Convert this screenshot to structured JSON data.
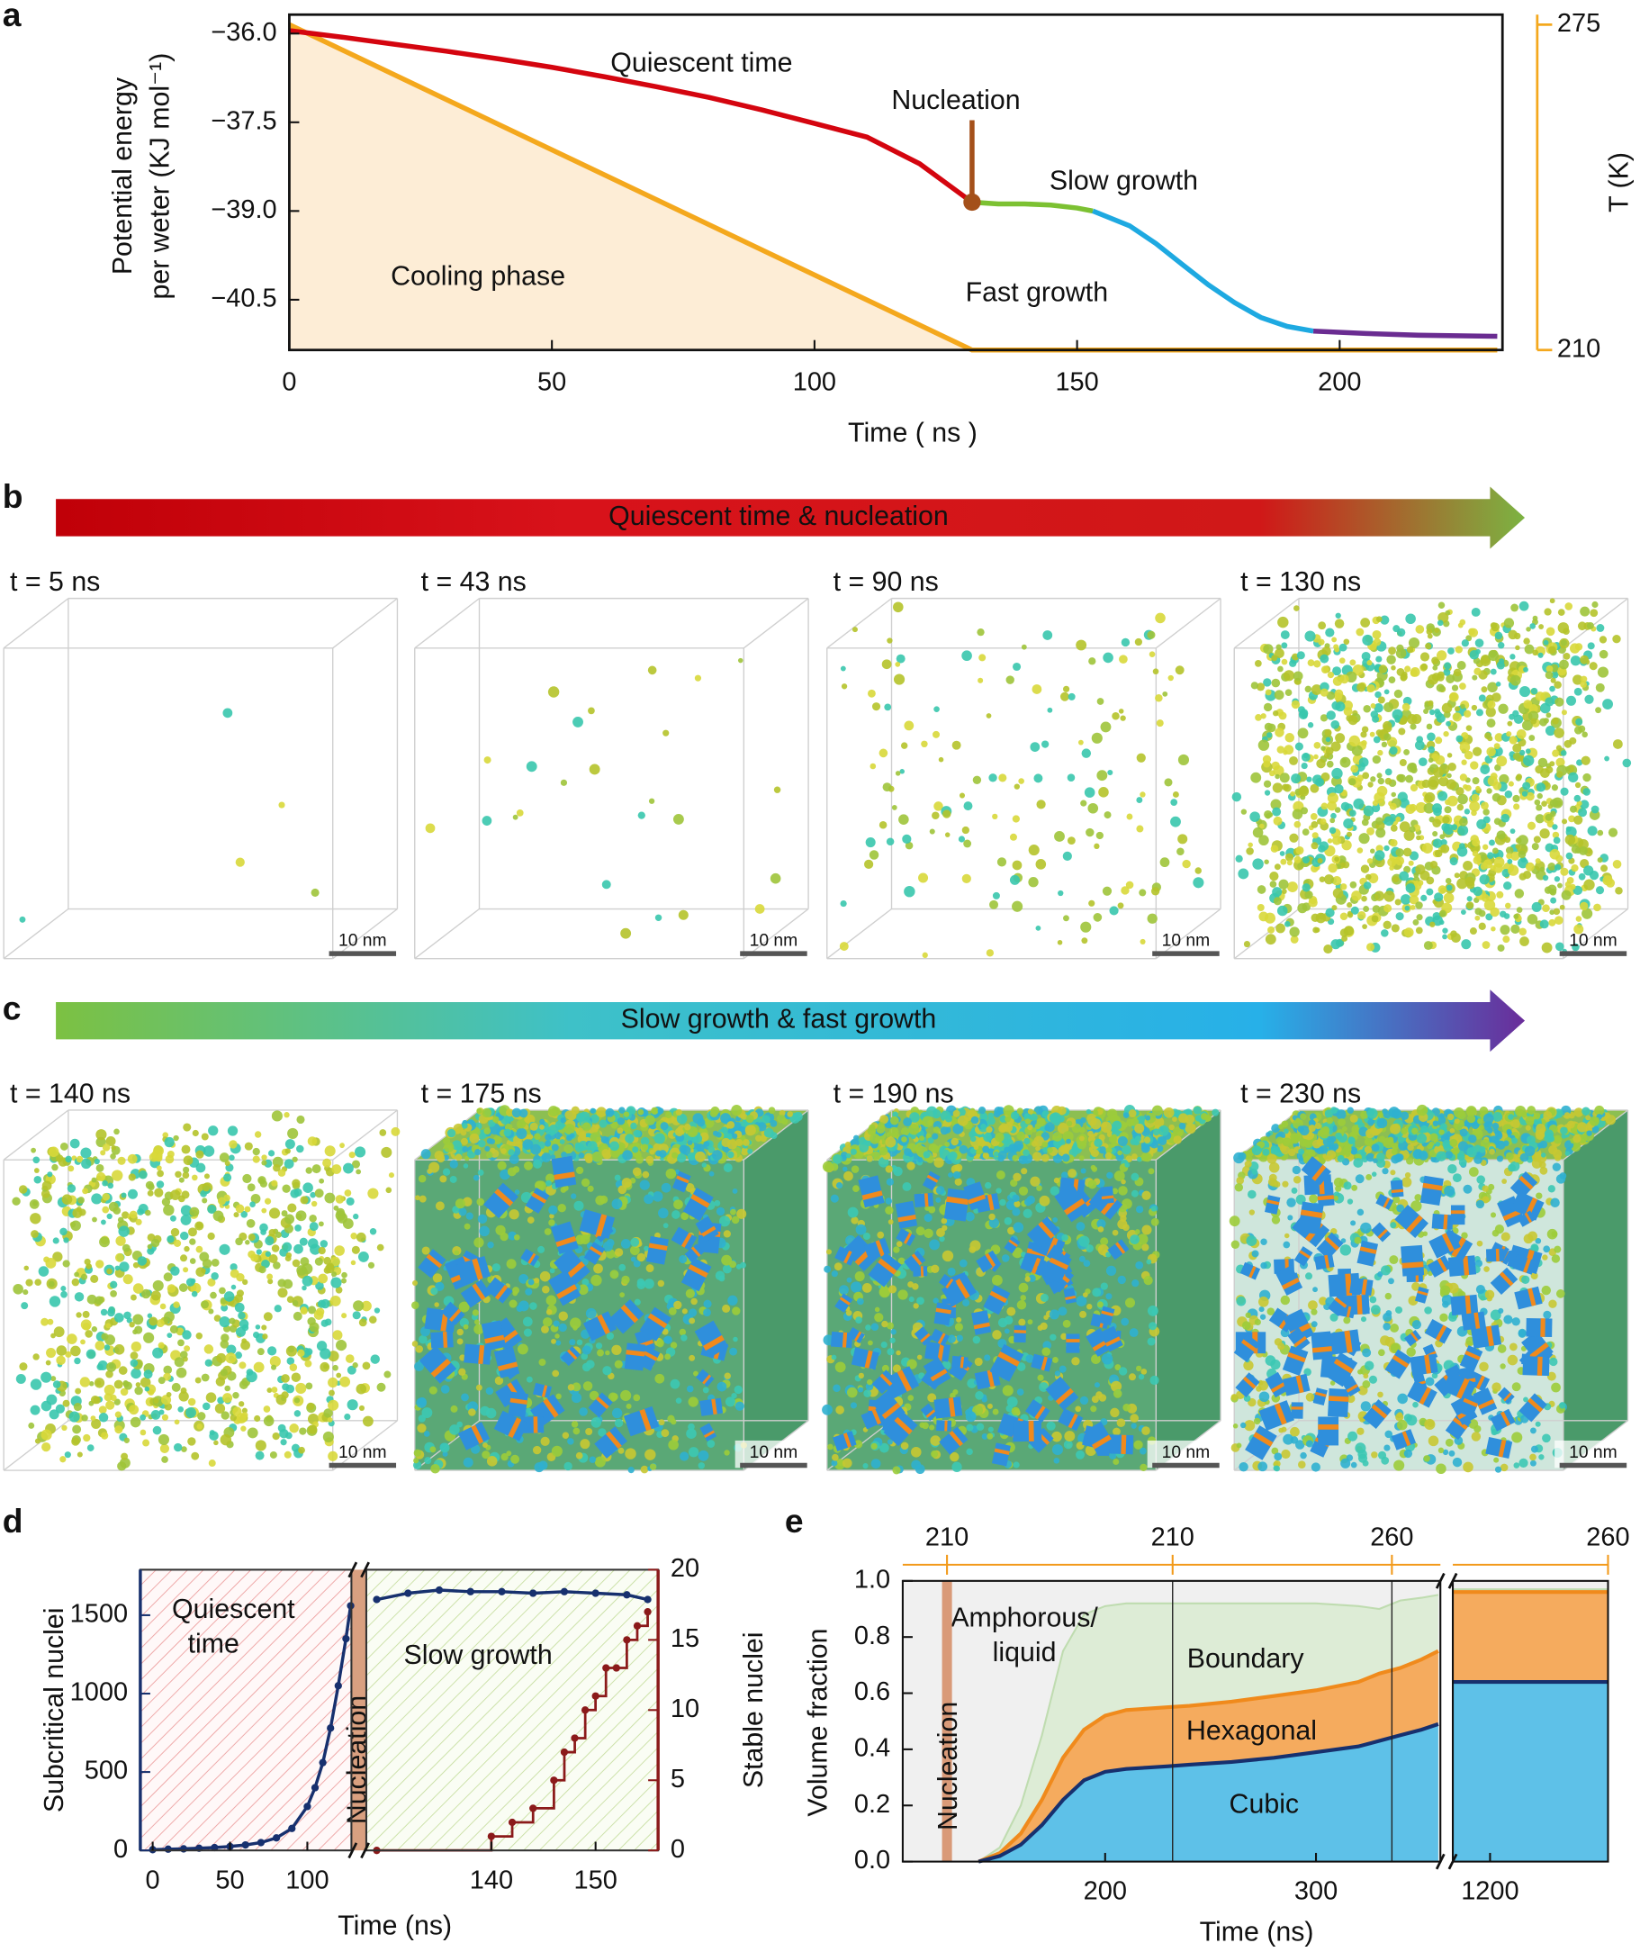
{
  "chart_data": [
    {
      "type": "line",
      "label": "a",
      "xlabel": "Time ( ns )",
      "ylabel": [
        "Potential energy",
        "per weter (KJ mol⁻¹)"
      ],
      "y2label": "T (K)",
      "xlim": [
        0,
        231
      ],
      "xticks": [
        0,
        50,
        100,
        150,
        200
      ],
      "ylim": [
        -41.35,
        -35.68
      ],
      "yticks": [
        {
          "value": -36,
          "label": "−36.0"
        },
        {
          "value": -37.5,
          "label": "−37.5"
        },
        {
          "value": -39,
          "label": "−39.0"
        },
        {
          "value": -40.5,
          "label": "−40.5"
        }
      ],
      "y2lim": [
        210,
        277
      ],
      "y2ticks": [
        210,
        275
      ],
      "y2color": "#f4a81d",
      "series": [
        {
          "name": "Cooling phase",
          "color": "#f4a81d",
          "axis": "y2",
          "fill": "#fdedd6",
          "x": [
            0,
            130,
            230
          ],
          "values": [
            275,
            210,
            210
          ]
        },
        {
          "name": "Quiescent time",
          "color": "#d4050f",
          "x": [
            0,
            10,
            20,
            30,
            40,
            50,
            60,
            70,
            80,
            90,
            100,
            110,
            120,
            130
          ],
          "values": [
            -35.95,
            -36.06,
            -36.18,
            -36.3,
            -36.43,
            -36.57,
            -36.73,
            -36.9,
            -37.08,
            -37.29,
            -37.52,
            -37.75,
            -38.2,
            -38.85
          ]
        },
        {
          "name": "Slow growth",
          "color": "#7cc132",
          "x": [
            130,
            135,
            140,
            145,
            150,
            153
          ],
          "values": [
            -38.85,
            -38.88,
            -38.88,
            -38.9,
            -38.95,
            -39.0
          ]
        },
        {
          "name": "Fast growth",
          "color": "#1ea9e1",
          "x": [
            153,
            160,
            165,
            170,
            175,
            180,
            185,
            190,
            195
          ],
          "values": [
            -39.0,
            -39.25,
            -39.55,
            -39.9,
            -40.25,
            -40.55,
            -40.8,
            -40.95,
            -41.03
          ]
        },
        {
          "color": "#6a2c91",
          "x": [
            195,
            205,
            215,
            230
          ],
          "values": [
            -41.03,
            -41.07,
            -41.1,
            -41.12
          ]
        }
      ],
      "annotations": [
        {
          "text": "Nucleation",
          "x": 130,
          "y": -38.85,
          "color": "#a4501a"
        }
      ]
    },
    {
      "type": "broken-line",
      "label": "d",
      "xlabel": "Time (ns)",
      "ylabel": "Subcritical nuclei",
      "y2label": "Stable nuclei",
      "xlims": [
        [
          -8,
          128.5
        ],
        [
          128,
          156
        ]
      ],
      "xticks": [
        [
          0,
          50,
          100
        ],
        [
          140,
          150
        ]
      ],
      "ylim": [
        0,
        1790
      ],
      "yticks": [
        0,
        500,
        1000,
        1500
      ],
      "y2lim": [
        0,
        20
      ],
      "y2ticks": [
        0,
        5,
        10,
        15,
        20
      ],
      "ycolor": "#17306e",
      "y2color": "#8b1a1a",
      "regions": [
        {
          "text": [
            "Quiescent",
            "time"
          ],
          "color": "#e0302a"
        },
        {
          "text": [
            "Slow growth"
          ],
          "color": "#8cc63f"
        }
      ],
      "nucleation": {
        "text": "Nucleation",
        "color": "#b5561b"
      },
      "series": [
        {
          "color": "#17306e",
          "x": [
            0,
            10,
            20,
            30,
            40,
            50,
            60,
            70,
            80,
            90,
            100,
            105,
            110,
            115,
            120,
            125,
            128,
            129,
            132,
            135,
            138,
            141,
            144,
            147,
            150,
            153,
            155
          ],
          "values": [
            5,
            8,
            10,
            14,
            18,
            25,
            35,
            50,
            80,
            140,
            280,
            400,
            560,
            780,
            1050,
            1350,
            1560,
            1600,
            1640,
            1660,
            1650,
            1650,
            1640,
            1650,
            1640,
            1630,
            1600
          ]
        },
        {
          "color": "#8b1a1a",
          "axis": "y2",
          "step": true,
          "x": [
            129,
            140,
            142,
            144,
            146,
            147,
            148,
            149,
            150,
            151,
            152,
            153,
            154,
            155
          ],
          "values": [
            0,
            1,
            2,
            3,
            5,
            7,
            8,
            10,
            11,
            13,
            13,
            15,
            16,
            17
          ]
        }
      ]
    },
    {
      "type": "broken-stacked-area",
      "label": "e",
      "xlabel": "Time (ns)",
      "ylabel": "Volume fraction",
      "xlims": [
        [
          104,
          359
        ],
        [
          1170,
          1295
        ]
      ],
      "xticks": [
        [
          200,
          300
        ],
        [
          1200
        ]
      ],
      "ylim": [
        0,
        1
      ],
      "yticks": [
        {
          "value": 0,
          "label": "0.0"
        },
        0.2,
        0.4,
        0.6,
        0.8,
        {
          "value": 1,
          "label": "1.0"
        }
      ],
      "x2ticks": [
        {
          "value": 125,
          "label": "210"
        },
        {
          "value": 232,
          "label": "210"
        },
        {
          "value": 336,
          "label": "260"
        },
        {
          "value": 1295,
          "label": "260"
        }
      ],
      "x2color": "#f29a1a",
      "vlines": [
        232,
        336
      ],
      "nucleation": {
        "text": "Nucleation",
        "x": 125,
        "color": "#b5561b"
      },
      "background": {
        "text": [
          "Amphorous/",
          "liquid"
        ],
        "color": "#f0f0f0"
      },
      "x": [
        140,
        150,
        160,
        170,
        180,
        190,
        200,
        210,
        220,
        230,
        240,
        260,
        280,
        300,
        320,
        330,
        340,
        350,
        358,
        1170,
        1295
      ],
      "series": [
        {
          "name": "Cubic",
          "color": "#5ec1e8",
          "line": "#17306e",
          "values": [
            0,
            0.02,
            0.06,
            0.13,
            0.22,
            0.29,
            0.32,
            0.33,
            0.335,
            0.34,
            0.345,
            0.355,
            0.37,
            0.39,
            0.41,
            0.43,
            0.45,
            0.47,
            0.49,
            0.64,
            0.64
          ]
        },
        {
          "name": "Hexagonal",
          "color": "#f5ab5e",
          "line": "#f08a1c",
          "values": [
            0,
            0.01,
            0.04,
            0.09,
            0.15,
            0.18,
            0.2,
            0.21,
            0.21,
            0.21,
            0.21,
            0.215,
            0.22,
            0.22,
            0.23,
            0.24,
            0.24,
            0.25,
            0.26,
            0.32,
            0.32
          ]
        },
        {
          "name": "Boundary",
          "color": "#d8ebd0",
          "line": "#bfdcb0",
          "values": [
            0,
            0.02,
            0.1,
            0.23,
            0.38,
            0.41,
            0.39,
            0.38,
            0.375,
            0.37,
            0.365,
            0.35,
            0.33,
            0.31,
            0.27,
            0.23,
            0.24,
            0.22,
            0.2,
            0.01,
            0.01
          ]
        }
      ]
    }
  ],
  "snapshot_rows": [
    {
      "label": "b",
      "arrow": "Quiescent time & nucleation",
      "arrow_colors": [
        "#c00008",
        "#d8121a",
        "#d01818",
        "#7cb342"
      ],
      "frames": [
        "t = 5 ns",
        "t = 43 ns",
        "t = 90 ns",
        "t = 130 ns"
      ],
      "scale_bar": "10 nm"
    },
    {
      "label": "c",
      "arrow": "Slow growth & fast growth",
      "arrow_colors": [
        "#7cc142",
        "#3ec1c8",
        "#27b0e8",
        "#6a2d9a"
      ],
      "frames": [
        "t = 140 ns",
        "t = 175 ns",
        "t = 190 ns",
        "t = 230 ns"
      ],
      "scale_bar": "10 nm"
    }
  ]
}
